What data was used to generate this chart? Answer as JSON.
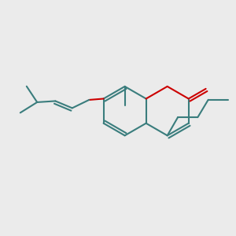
{
  "bg_color": "#ebebeb",
  "bond_color": "#3a7d7d",
  "oxygen_color": "#cc0000",
  "line_width": 1.5,
  "figsize": [
    3.0,
    3.0
  ],
  "dpi": 100,
  "xlim": [
    0,
    10
  ],
  "ylim": [
    0,
    10
  ]
}
